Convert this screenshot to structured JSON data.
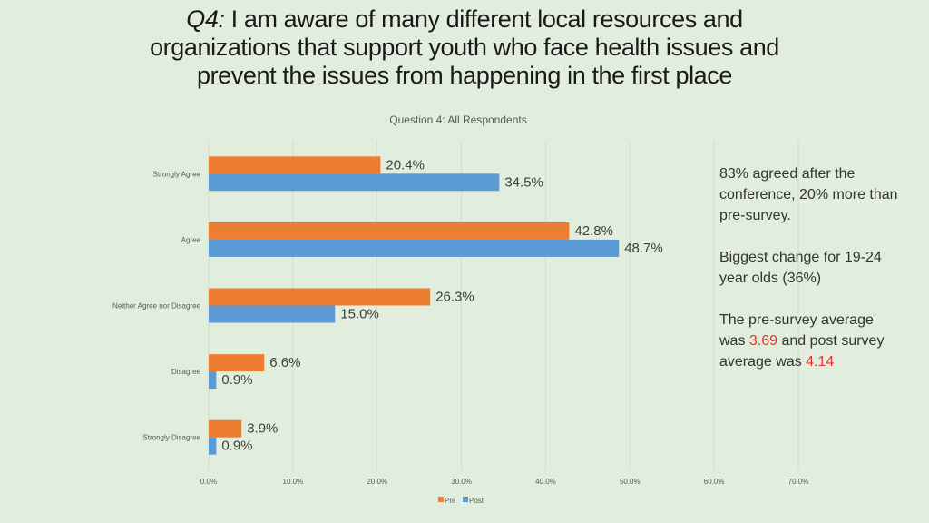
{
  "title": {
    "prefix": "Q4:",
    "line1": " I am aware of many different local resources and",
    "line2": "organizations that support youth who face health issues and",
    "line3": "prevent the issues from happening in the first place"
  },
  "notes": {
    "p1": "83% agreed after the conference, 20% more than pre-survey.",
    "p2": "Biggest change for 19-24 year olds (36%)",
    "p3_a": "The pre-survey average was ",
    "pre_avg": "3.69",
    "p3_b": " and post survey average was ",
    "post_avg": "4.14",
    "highlight_color": "#e8302a"
  },
  "chart_data": {
    "type": "bar",
    "orientation": "horizontal",
    "title": "Question 4: All Respondents",
    "categories": [
      "Strongly Agree",
      "Agree",
      "Neither Agree nor Disagree",
      "Disagree",
      "Strongly Disagree"
    ],
    "series": [
      {
        "name": "Pre",
        "color": "#ed7d31",
        "values": [
          20.4,
          42.8,
          26.3,
          6.6,
          3.9
        ],
        "labels": [
          "20.4%",
          "42.8%",
          "26.3%",
          "6.6%",
          "3.9%"
        ]
      },
      {
        "name": "Post",
        "color": "#5b9bd5",
        "values": [
          34.5,
          48.7,
          15.0,
          0.9,
          0.9
        ],
        "labels": [
          "34.5%",
          "48.7%",
          "15.0%",
          "0.9%",
          "0.9%"
        ]
      }
    ],
    "xlim": [
      0,
      70
    ],
    "xticks": [
      0,
      10,
      20,
      30,
      40,
      50,
      60,
      70
    ],
    "xtick_labels": [
      "0.0%",
      "10.0%",
      "20.0%",
      "30.0%",
      "40.0%",
      "50.0%",
      "60.0%",
      "70.0%"
    ],
    "grid": true,
    "legend": "bottom"
  }
}
